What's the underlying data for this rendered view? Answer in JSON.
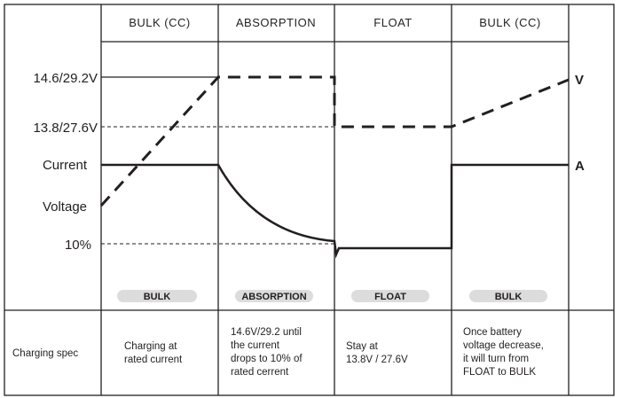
{
  "colors": {
    "line": "#231f20",
    "pill": "#dcdcdc",
    "background": "#ffffff"
  },
  "phases": [
    "BULK (CC)",
    "ABSORPTION",
    "FLOAT",
    "BULK (CC)"
  ],
  "y_labels": {
    "v_high": "14.6/29.2V",
    "v_float": "13.8/27.6V",
    "current": "Current",
    "voltage": "Voltage",
    "ten_percent": "10%"
  },
  "curve_labels": {
    "voltage": "V",
    "current": "A"
  },
  "pills": [
    "BULK",
    "ABSORPTION",
    "FLOAT",
    "BULK"
  ],
  "spec": {
    "label": "Charging spec",
    "cells": [
      [
        "Charging at",
        "rated current"
      ],
      [
        "14.6V/29.2 until",
        "the current",
        "drops to 10% of",
        "rated cerrent"
      ],
      [
        "Stay at",
        "13.8V / 27.6V"
      ],
      [
        "Once battery",
        "voltage decrease,",
        "it will turn from",
        "FLOAT to BULK"
      ]
    ]
  }
}
